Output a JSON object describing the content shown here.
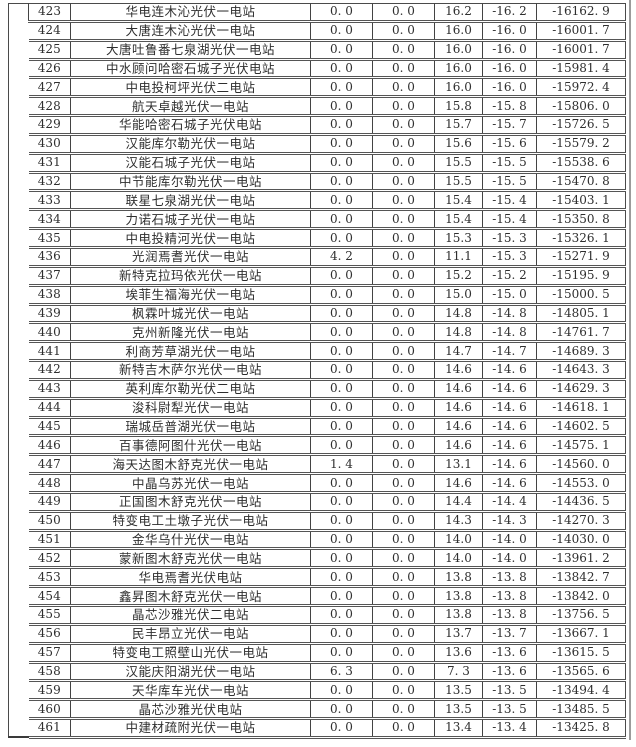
{
  "table": {
    "rows": [
      {
        "no": "423",
        "name": "华电连木沁光伏一电站",
        "c1": "0. 0",
        "c2": "0. 0",
        "c3": "16.2",
        "c4": "-16. 2",
        "c5": "-16162. 9"
      },
      {
        "no": "424",
        "name": "大唐连木沁光伏一电站",
        "c1": "0. 0",
        "c2": "0. 0",
        "c3": "16.0",
        "c4": "-16. 0",
        "c5": "-16001. 7"
      },
      {
        "no": "425",
        "name": "大唐吐鲁番七泉湖光伏一电站",
        "c1": "0. 0",
        "c2": "0. 0",
        "c3": "16.0",
        "c4": "-16. 0",
        "c5": "-16001. 7"
      },
      {
        "no": "426",
        "name": "中水顾问哈密石城子光伏电站",
        "c1": "0. 0",
        "c2": "0. 0",
        "c3": "16.0",
        "c4": "-16. 0",
        "c5": "-15981. 4"
      },
      {
        "no": "427",
        "name": "中电投柯坪光伏二电站",
        "c1": "0. 0",
        "c2": "0. 0",
        "c3": "16.0",
        "c4": "-16. 0",
        "c5": "-15972. 4"
      },
      {
        "no": "428",
        "name": "航天卓越光伏一电站",
        "c1": "0. 0",
        "c2": "0. 0",
        "c3": "15.8",
        "c4": "-15. 8",
        "c5": "-15806. 0"
      },
      {
        "no": "429",
        "name": "华能哈密石城子光伏电站",
        "c1": "0. 0",
        "c2": "0. 0",
        "c3": "15.7",
        "c4": "-15. 7",
        "c5": "-15726. 5"
      },
      {
        "no": "430",
        "name": "汉能库尔勒光伏一电站",
        "c1": "0. 0",
        "c2": "0. 0",
        "c3": "15.6",
        "c4": "-15. 6",
        "c5": "-15579. 2"
      },
      {
        "no": "431",
        "name": "汉能石城子光伏一电站",
        "c1": "0. 0",
        "c2": "0. 0",
        "c3": "15.5",
        "c4": "-15. 5",
        "c5": "-15538. 6"
      },
      {
        "no": "432",
        "name": "中节能库尔勒光伏一电站",
        "c1": "0. 0",
        "c2": "0. 0",
        "c3": "15.5",
        "c4": "-15. 5",
        "c5": "-15470. 8"
      },
      {
        "no": "433",
        "name": "联星七泉湖光伏一电站",
        "c1": "0. 0",
        "c2": "0. 0",
        "c3": "15.4",
        "c4": "-15. 4",
        "c5": "-15403. 1"
      },
      {
        "no": "434",
        "name": "力诺石城子光伏一电站",
        "c1": "0. 0",
        "c2": "0. 0",
        "c3": "15.4",
        "c4": "-15. 4",
        "c5": "-15350. 8"
      },
      {
        "no": "435",
        "name": "中电投精河光伏一电站",
        "c1": "0. 0",
        "c2": "0. 0",
        "c3": "15.3",
        "c4": "-15. 3",
        "c5": "-15326. 1"
      },
      {
        "no": "436",
        "name": "光润焉耆光伏一电站",
        "c1": "4. 2",
        "c2": "0. 0",
        "c3": "11.1",
        "c4": "-15. 3",
        "c5": "-15271. 9"
      },
      {
        "no": "437",
        "name": "新特克拉玛依光伏一电站",
        "c1": "0. 0",
        "c2": "0. 0",
        "c3": "15.2",
        "c4": "-15. 2",
        "c5": "-15195. 9"
      },
      {
        "no": "438",
        "name": "埃菲生福海光伏一电站",
        "c1": "0. 0",
        "c2": "0. 0",
        "c3": "15.0",
        "c4": "-15. 0",
        "c5": "-15000. 5"
      },
      {
        "no": "439",
        "name": "枫霖叶城光伏一电站",
        "c1": "0. 0",
        "c2": "0. 0",
        "c3": "14.8",
        "c4": "-14. 8",
        "c5": "-14805. 1"
      },
      {
        "no": "440",
        "name": "克州新隆光伏一电站",
        "c1": "0. 0",
        "c2": "0. 0",
        "c3": "14.8",
        "c4": "-14. 8",
        "c5": "-14761. 7"
      },
      {
        "no": "441",
        "name": "利商芳草湖光伏一电站",
        "c1": "0. 0",
        "c2": "0. 0",
        "c3": "14.7",
        "c4": "-14. 7",
        "c5": "-14689. 3"
      },
      {
        "no": "442",
        "name": "新特吉木萨尔光伏一电站",
        "c1": "0. 0",
        "c2": "0. 0",
        "c3": "14.6",
        "c4": "-14. 6",
        "c5": "-14643. 3"
      },
      {
        "no": "443",
        "name": "英利库尔勒光伏二电站",
        "c1": "0. 0",
        "c2": "0. 0",
        "c3": "14.6",
        "c4": "-14. 6",
        "c5": "-14629. 3"
      },
      {
        "no": "444",
        "name": "浚科尉犁光伏一电站",
        "c1": "0. 0",
        "c2": "0. 0",
        "c3": "14.6",
        "c4": "-14. 6",
        "c5": "-14618. 1"
      },
      {
        "no": "445",
        "name": "瑞城岳普湖光伏一电站",
        "c1": "0. 0",
        "c2": "0. 0",
        "c3": "14.6",
        "c4": "-14. 6",
        "c5": "-14602. 5"
      },
      {
        "no": "446",
        "name": "百事德阿图什光伏一电站",
        "c1": "0. 0",
        "c2": "0. 0",
        "c3": "14.6",
        "c4": "-14. 6",
        "c5": "-14575. 1"
      },
      {
        "no": "447",
        "name": "海天达图木舒克光伏一电站",
        "c1": "1. 4",
        "c2": "0. 0",
        "c3": "13.1",
        "c4": "-14. 6",
        "c5": "-14560. 0"
      },
      {
        "no": "448",
        "name": "中晶乌苏光伏一电站",
        "c1": "0. 0",
        "c2": "0. 0",
        "c3": "14.6",
        "c4": "-14. 6",
        "c5": "-14553. 0"
      },
      {
        "no": "449",
        "name": "正国图木舒克光伏一电站",
        "c1": "0. 0",
        "c2": "0. 0",
        "c3": "14.4",
        "c4": "-14. 4",
        "c5": "-14436. 5"
      },
      {
        "no": "450",
        "name": "特变电工土墩子光伏一电站",
        "c1": "0. 0",
        "c2": "0. 0",
        "c3": "14.3",
        "c4": "-14. 3",
        "c5": "-14270. 3"
      },
      {
        "no": "451",
        "name": "金华乌什光伏一电站",
        "c1": "0. 0",
        "c2": "0. 0",
        "c3": "14.0",
        "c4": "-14. 0",
        "c5": "-14030. 0"
      },
      {
        "no": "452",
        "name": "蒙新图木舒克光伏一电站",
        "c1": "0. 0",
        "c2": "0. 0",
        "c3": "14.0",
        "c4": "-14. 0",
        "c5": "-13961. 2"
      },
      {
        "no": "453",
        "name": "华电焉耆光伏电站",
        "c1": "0. 0",
        "c2": "0. 0",
        "c3": "13.8",
        "c4": "-13. 8",
        "c5": "-13842. 7"
      },
      {
        "no": "454",
        "name": "鑫昇图木舒克光伏一电站",
        "c1": "0. 0",
        "c2": "0. 0",
        "c3": "13.8",
        "c4": "-13. 8",
        "c5": "-13842. 0"
      },
      {
        "no": "455",
        "name": "晶芯沙雅光伏二电站",
        "c1": "0. 0",
        "c2": "0. 0",
        "c3": "13.8",
        "c4": "-13. 8",
        "c5": "-13756. 5"
      },
      {
        "no": "456",
        "name": "民丰昂立光伏一电站",
        "c1": "0. 0",
        "c2": "0. 0",
        "c3": "13.7",
        "c4": "-13. 7",
        "c5": "-13667. 1"
      },
      {
        "no": "457",
        "name": "特变电工照壁山光伏一电站",
        "c1": "0. 0",
        "c2": "0. 0",
        "c3": "13.6",
        "c4": "-13. 6",
        "c5": "-13615. 5"
      },
      {
        "no": "458",
        "name": "汉能庆阳湖光伏一电站",
        "c1": "6. 3",
        "c2": "0. 0",
        "c3": "7. 3",
        "c4": "-13. 6",
        "c5": "-13565. 6"
      },
      {
        "no": "459",
        "name": "天华库车光伏一电站",
        "c1": "0. 0",
        "c2": "0. 0",
        "c3": "13.5",
        "c4": "-13. 5",
        "c5": "-13494. 4"
      },
      {
        "no": "460",
        "name": "晶芯沙雅光伏电站",
        "c1": "0. 0",
        "c2": "0. 0",
        "c3": "13.5",
        "c4": "-13. 5",
        "c5": "-13485. 5"
      },
      {
        "no": "461",
        "name": "中建材疏附光伏一电站",
        "c1": "0. 0",
        "c2": "0. 0",
        "c3": "13.4",
        "c4": "-13. 4",
        "c5": "-13425. 8"
      }
    ]
  },
  "colors": {
    "border_dark": "#4a4a4a",
    "border_double": "#555555",
    "page_edge_gray": "#9b9b9b",
    "text": "#2e2e2e",
    "background": "#ffffff"
  }
}
